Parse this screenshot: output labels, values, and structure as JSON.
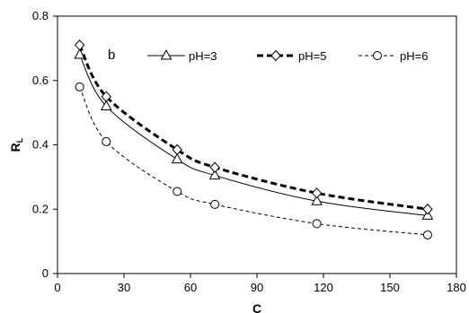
{
  "chart_data": {
    "type": "line",
    "panel_label": "b",
    "xlabel": "C",
    "ylabel": "R",
    "ylabel_subscript": "L",
    "xlim": [
      0,
      180
    ],
    "ylim": [
      0,
      0.8
    ],
    "x_ticks": [
      "0",
      "30",
      "60",
      "90",
      "120",
      "150",
      "180"
    ],
    "y_ticks": [
      "0",
      "0.2",
      "0.4",
      "0.6",
      "0.8"
    ],
    "grid": false,
    "legend_position": "top-right",
    "x": [
      10,
      22,
      54,
      71,
      117,
      167
    ],
    "series": [
      {
        "name": "pH=3",
        "values": [
          0.68,
          0.52,
          0.355,
          0.305,
          0.225,
          0.18
        ],
        "marker": "triangle",
        "line": "solid",
        "width": 1
      },
      {
        "name": "pH=5",
        "values": [
          0.71,
          0.55,
          0.385,
          0.33,
          0.25,
          0.2
        ],
        "marker": "diamond",
        "line": "dashed",
        "width": 3
      },
      {
        "name": "pH=6",
        "values": [
          0.58,
          0.41,
          0.255,
          0.215,
          0.155,
          0.12
        ],
        "marker": "circle",
        "line": "dashed",
        "width": 1
      }
    ]
  }
}
